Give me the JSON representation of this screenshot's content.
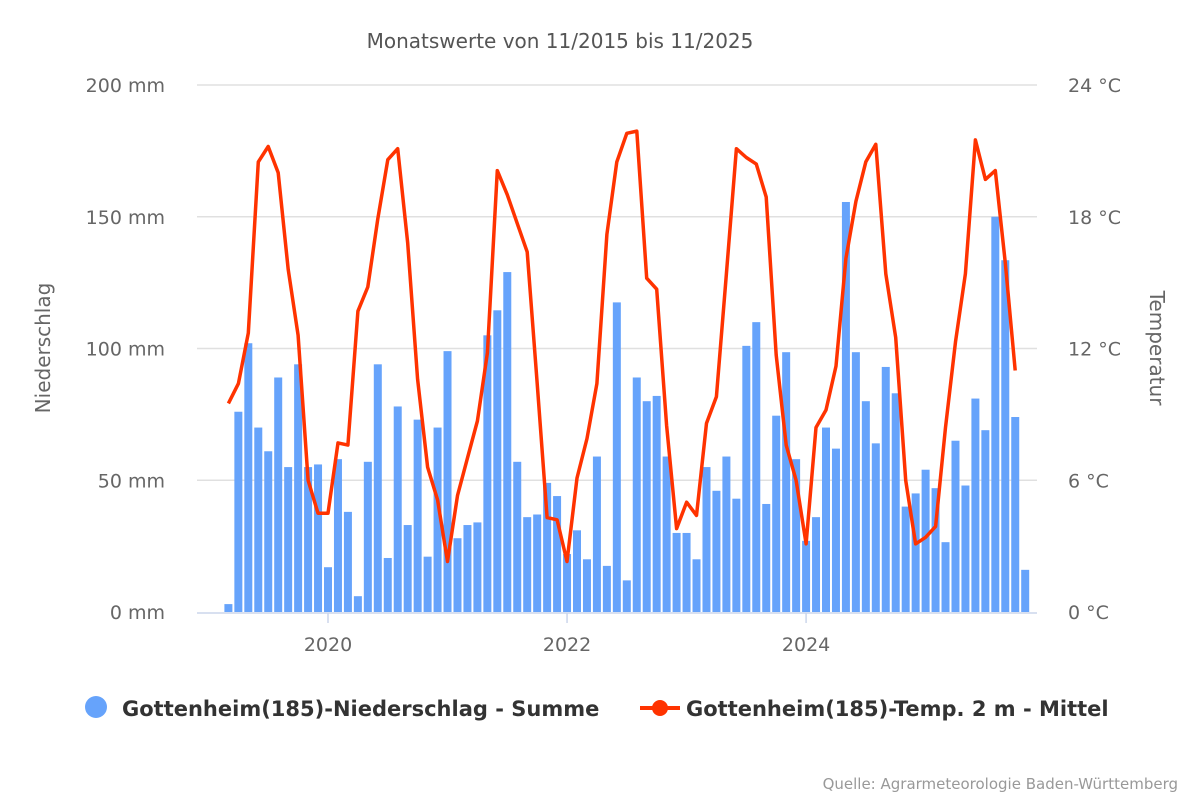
{
  "chart_data": {
    "type": "bar+line",
    "title": "Monatswerte von 11/2015 bis 11/2025",
    "source": "Quelle: Agrarmeteorologie Baden-Württemberg",
    "x_start_month": "2019-03",
    "x_tick_labels": [
      "2020",
      "2022",
      "2024"
    ],
    "y_left": {
      "label": "Niederschlag",
      "range": [
        0,
        200
      ],
      "ticks": [
        "0 mm",
        "50 mm",
        "100 mm",
        "150 mm",
        "200 mm"
      ],
      "tick_values": [
        0,
        50,
        100,
        150,
        200
      ]
    },
    "y_right": {
      "label": "Temperatur",
      "range": [
        0,
        24
      ],
      "ticks": [
        "0 °C",
        "6 °C",
        "12 °C",
        "18 °C",
        "24 °C"
      ],
      "tick_values": [
        0,
        6,
        12,
        18,
        24
      ]
    },
    "grid": true,
    "legend_position": "bottom",
    "series": [
      {
        "name": "Gottenheim(185)-Niederschlag - Summe",
        "type": "bar",
        "axis": "left",
        "color": "#66a3fb",
        "values": [
          3,
          76,
          102,
          70,
          61,
          89,
          55,
          94,
          55,
          56,
          17,
          58,
          38,
          6,
          57,
          94,
          20.5,
          78,
          33,
          73,
          21,
          70,
          99,
          28,
          33,
          34,
          105,
          114.5,
          129,
          57,
          36,
          37,
          49,
          44,
          22,
          31,
          20,
          59,
          17.5,
          117.5,
          12,
          89,
          80,
          82,
          59,
          30,
          30,
          20,
          55,
          46,
          59,
          43,
          101,
          110,
          41,
          74.5,
          98.6,
          58,
          27,
          36,
          70,
          62,
          155.6,
          98.6,
          80,
          64,
          93,
          83,
          40,
          45,
          54,
          47,
          26.5,
          65,
          48,
          81,
          69,
          150,
          133.5,
          74,
          16
        ]
      },
      {
        "name": "Gottenheim(185)-Temp. 2 m - Mittel",
        "type": "line",
        "axis": "right",
        "color": "#ff3300",
        "values": [
          9.5,
          10.4,
          12.7,
          20.5,
          21.2,
          20.0,
          15.6,
          12.6,
          6.0,
          4.5,
          4.5,
          7.7,
          7.6,
          13.7,
          14.8,
          17.9,
          20.6,
          21.1,
          16.8,
          10.6,
          6.6,
          5.1,
          2.3,
          5.3,
          7.0,
          8.7,
          11.8,
          20.1,
          19.0,
          17.7,
          16.4,
          10.4,
          4.3,
          4.2,
          2.3,
          6.1,
          7.9,
          10.4,
          17.2,
          20.5,
          21.8,
          21.9,
          15.2,
          14.7,
          8.5,
          3.8,
          5.0,
          4.4,
          8.6,
          9.8,
          15.4,
          21.1,
          20.7,
          20.4,
          18.9,
          11.7,
          7.6,
          6.0,
          3.1,
          8.4,
          9.2,
          11.2,
          16.1,
          18.7,
          20.5,
          21.3,
          15.4,
          12.5,
          6.0,
          3.1,
          3.4,
          3.9,
          8.4,
          12.3,
          15.4,
          21.5,
          19.7,
          20.1,
          15.9,
          11.0,
          null
        ]
      }
    ]
  }
}
